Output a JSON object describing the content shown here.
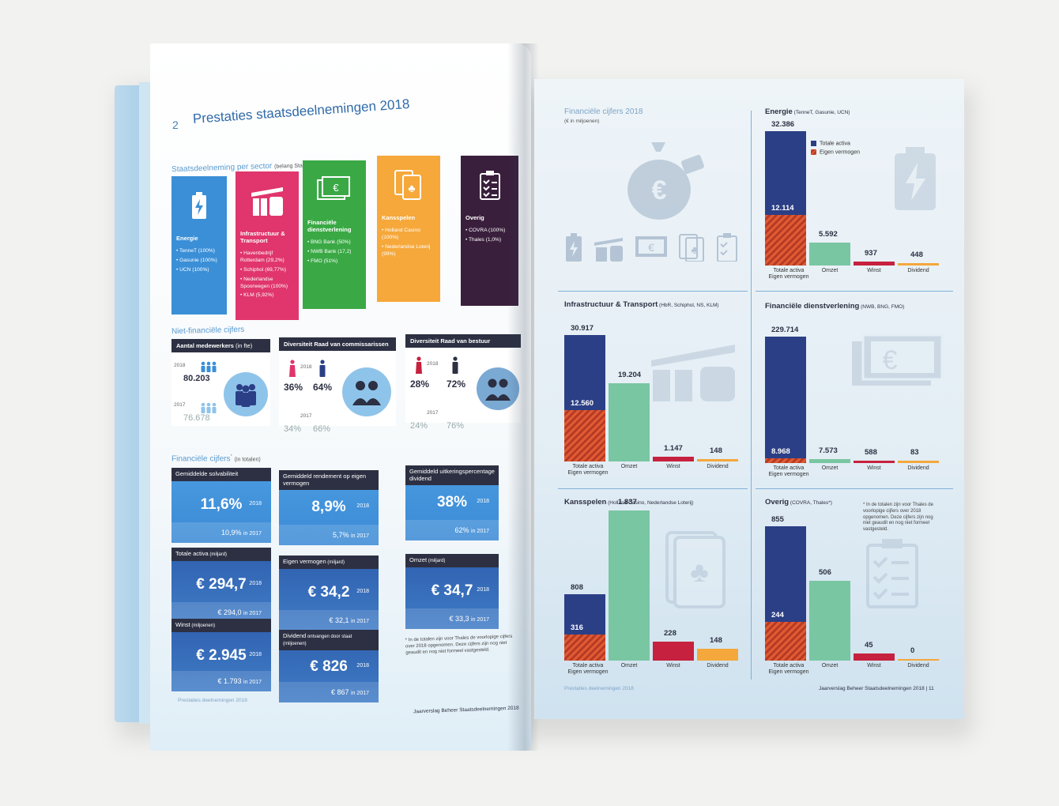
{
  "left_page": {
    "page_number": "2",
    "title": "Prestaties staatsdeelnemingen 2018",
    "sector_heading": "Staatsdeelneming per sector",
    "sector_heading_note": "(belang Staat der Nederlanden in %)",
    "sectors": [
      {
        "name": "Energie",
        "color": "#3a8fd7",
        "items": [
          "TenneT (100%)",
          "Gasunie (100%)",
          "UCN (100%)"
        ]
      },
      {
        "name": "Infrastructuur & Transport",
        "color": "#e0356d",
        "items": [
          "Havenbedrijf Rotterdam (29,2%)",
          "Schiphol (69,77%)",
          "Nederlandse Spoorwegen (100%)",
          "KLM (5,92%)"
        ]
      },
      {
        "name": "Financiële dienstverlening",
        "color": "#3aa945",
        "items": [
          "BNG Bank (50%)",
          "NWB Bank (17,2)",
          "FMO (51%)"
        ]
      },
      {
        "name": "Kansspelen",
        "color": "#f6a83a",
        "items": [
          "Holland Casino (100%)",
          "Nederlandse Loterij (99%)"
        ]
      },
      {
        "name": "Overig",
        "color": "#3a1f3d",
        "items": [
          "COVRA (100%)",
          "Thales (1,0%)"
        ]
      }
    ],
    "nonfin_heading": "Niet-financiële cijfers",
    "employees": {
      "title": "Aantal medewerkers",
      "title_note": "(in fte)",
      "year_2018": "2018",
      "value_2018": "80.203",
      "year_2017": "2017",
      "value_2017": "76.678"
    },
    "board_commissioners": {
      "title": "Diversiteit Raad van commissarissen",
      "year_2018": "2018",
      "female_2018": "36%",
      "male_2018": "64%",
      "year_2017": "2017",
      "female_2017": "34%",
      "male_2017": "66%"
    },
    "board_directors": {
      "title": "Diversiteit Raad van bestuur",
      "year_2018": "2018",
      "female_2018": "28%",
      "male_2018": "72%",
      "year_2017": "2017",
      "female_2017": "24%",
      "male_2017": "76%"
    },
    "fin_heading": "Financiële cijfers",
    "fin_heading_sup": "*",
    "fin_heading_note": "(in totalen)",
    "fin_cards": [
      {
        "title": "Gemiddelde solvabiliteit",
        "value": "11,6%",
        "year": "2018",
        "prev": "10,9%",
        "prev_note": "in 2017"
      },
      {
        "title": "Gemiddeld rendement op eigen vermogen",
        "value": "8,9%",
        "year": "2018",
        "prev": "5,7%",
        "prev_note": "in 2017"
      },
      {
        "title": "Gemiddeld uitkeringspercentage dividend",
        "value": "38%",
        "year": "2018",
        "prev": "62%",
        "prev_note": "in 2017"
      },
      {
        "title": "Totale activa",
        "title_note": "(miljard)",
        "value": "€ 294,7",
        "year": "2018",
        "prev": "€ 294,0",
        "prev_note": "in 2017"
      },
      {
        "title": "Eigen vermogen",
        "title_note": "(miljard)",
        "value": "€ 34,2",
        "year": "2018",
        "prev": "€ 32,1",
        "prev_note": "in 2017"
      },
      {
        "title": "Omzet",
        "title_note": "(miljard)",
        "value": "€ 34,7",
        "year": "2018",
        "prev": "€ 33,3",
        "prev_note": "in 2017"
      },
      {
        "title": "Winst",
        "title_note": "(miljoenen)",
        "value": "€ 2.945",
        "year": "2018",
        "prev": "€ 1.793",
        "prev_note": "in 2017"
      },
      {
        "title": "Dividend",
        "title_note": "ontvangen door staat (miljoenen)",
        "value": "€ 826",
        "year": "2018",
        "prev": "€ 867",
        "prev_note": "in 2017"
      }
    ],
    "note": "* In de totalen zijn voor Thales de voorlopige cijfers over 2018 opgenomen. Deze cijfers zijn nog niet geaudit en nog niet formeel vastgesteld.",
    "footer_left": "Prestaties deelnemingen 2018",
    "footer_right": "Jaarverslag Beheer Staatsdeelnemingen 2018"
  },
  "right_page": {
    "title": "Financiële cijfers 2018",
    "subtitle": "(€ in miljoenen)",
    "legend": {
      "total_assets": "Totale activa",
      "equity": "Eigen vermogen"
    },
    "footer_left": "Prestaties deelnemingen 2018",
    "footer_right": "Jaarverslag Beheer Staatsdeelnemingen 2018  |  11",
    "note": "* In de totalen zijn voor Thales de voorlopige cijfers over 2018 opgenomen. Deze cijfers zijn nog niet geaudit en nog niet formeel vastgesteld.",
    "colors": {
      "total_assets": "#2b3f86",
      "equity": "#e05a33",
      "omzet": "#79c6a3",
      "winst": "#c6213e",
      "dividend": "#f4a73b"
    }
  },
  "chart_data": [
    {
      "type": "bar",
      "title": "Energie",
      "subtitle": "(TenneT, Gasunie, UCN)",
      "categories": [
        "Totale activa\nEigen vermogen",
        "Omzet",
        "Winst",
        "Dividend"
      ],
      "labels": {
        "total_assets": "32.386",
        "equity": "12.114",
        "omzet": "5.592",
        "winst": "937",
        "dividend": "448"
      },
      "values": {
        "total_assets": 32386,
        "equity": 12114,
        "omzet": 5592,
        "winst": 937,
        "dividend": 448
      }
    },
    {
      "type": "bar",
      "title": "Infrastructuur & Transport",
      "subtitle": "(HbR, Schiphol, NS, KLM)",
      "categories": [
        "Totale activa\nEigen vermogen",
        "Omzet",
        "Winst",
        "Dividend"
      ],
      "labels": {
        "total_assets": "30.917",
        "equity": "12.560",
        "omzet": "19.204",
        "winst": "1.147",
        "dividend": "148"
      },
      "values": {
        "total_assets": 30917,
        "equity": 12560,
        "omzet": 19204,
        "winst": 1147,
        "dividend": 148
      }
    },
    {
      "type": "bar",
      "title": "Financiële dienstverlening",
      "subtitle": "(NWB, BNG, FMO)",
      "categories": [
        "Totale activa\nEigen vermogen",
        "Omzet",
        "Winst",
        "Dividend"
      ],
      "labels": {
        "total_assets": "229.714",
        "equity": "8.968",
        "omzet": "7.573",
        "winst": "588",
        "dividend": "83"
      },
      "values": {
        "total_assets": 229714,
        "equity": 8968,
        "omzet": 7573,
        "winst": 588,
        "dividend": 83
      }
    },
    {
      "type": "bar",
      "title": "Kansspelen",
      "subtitle": "(Holland Casino, Nederlandse Loterij)",
      "categories": [
        "Totale activa\nEigen vermogen",
        "Omzet",
        "Winst",
        "Dividend"
      ],
      "labels": {
        "total_assets": "808",
        "equity": "316",
        "omzet": "1.837",
        "winst": "228",
        "dividend": "148"
      },
      "values": {
        "total_assets": 808,
        "equity": 316,
        "omzet": 1837,
        "winst": 228,
        "dividend": 148
      }
    },
    {
      "type": "bar",
      "title": "Overig",
      "subtitle": "(COVRA, Thales*)",
      "categories": [
        "Totale activa\nEigen vermogen",
        "Omzet",
        "Winst",
        "Dividend"
      ],
      "labels": {
        "total_assets": "855",
        "equity": "244",
        "omzet": "506",
        "winst": "45",
        "dividend": "0"
      },
      "values": {
        "total_assets": 855,
        "equity": 244,
        "omzet": 506,
        "winst": 45,
        "dividend": 0
      }
    }
  ]
}
